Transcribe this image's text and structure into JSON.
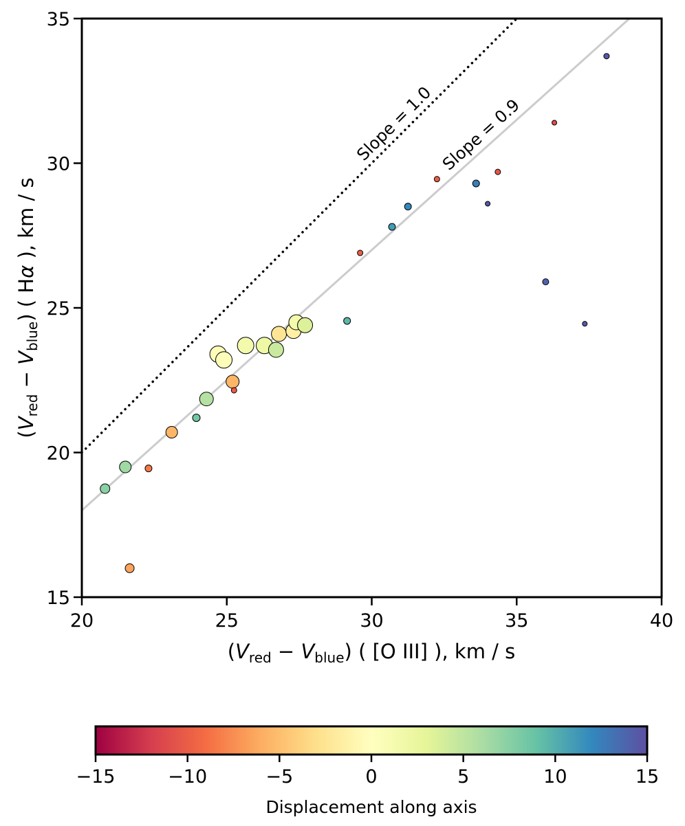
{
  "chart_data": {
    "type": "scatter",
    "x_axis": {
      "label_prefix": "(",
      "v_red_main": "V",
      "v_red_sub": "red",
      "minus": " − ",
      "v_blue_main": "V",
      "v_blue_sub": "blue",
      "label_suffix": ") ( [O III] ), km / s",
      "range": [
        20,
        40
      ],
      "ticks": [
        20,
        25,
        30,
        35,
        40
      ]
    },
    "y_axis": {
      "label_prefix": "(",
      "v_red_main": "V",
      "v_red_sub": "red",
      "minus": " − ",
      "v_blue_main": "V",
      "v_blue_sub": "blue",
      "label_suffix": ") ( H",
      "alpha": "α",
      "label_end": " ), km / s",
      "range": [
        15,
        35
      ],
      "ticks": [
        15,
        20,
        25,
        30,
        35
      ]
    },
    "reference_lines": [
      {
        "name": "slope-1.0",
        "slope": 1.0,
        "label": "Slope = 1.0",
        "style": "dotted",
        "color": "#000000"
      },
      {
        "name": "slope-0.9",
        "slope": 0.9,
        "label": "Slope = 0.9",
        "style": "solid",
        "color": "#cccccc"
      }
    ],
    "colorbar": {
      "label": "Displacement along axis",
      "range": [
        -15,
        15
      ],
      "ticks": [
        "−15",
        "−10",
        "−5",
        "0",
        "5",
        "10",
        "15"
      ],
      "tick_values": [
        -15,
        -10,
        -5,
        0,
        5,
        10,
        15
      ],
      "colormap": "Spectral",
      "stops": [
        "#9e0142",
        "#d53e4f",
        "#f46d43",
        "#fdae61",
        "#fee08b",
        "#ffffbf",
        "#e6f598",
        "#abdda4",
        "#66c2a5",
        "#3288bd",
        "#5e4fa2"
      ]
    },
    "points": [
      {
        "x": 20.8,
        "y": 18.75,
        "d": 7.5,
        "r": 7
      },
      {
        "x": 21.5,
        "y": 19.5,
        "d": 6.5,
        "r": 8.5
      },
      {
        "x": 21.65,
        "y": 16.0,
        "d": -6.5,
        "r": 6.5
      },
      {
        "x": 22.3,
        "y": 19.45,
        "d": -8.5,
        "r": 5
      },
      {
        "x": 23.1,
        "y": 20.7,
        "d": -5.5,
        "r": 8.5
      },
      {
        "x": 23.95,
        "y": 21.2,
        "d": 8.5,
        "r": 5.5
      },
      {
        "x": 24.3,
        "y": 21.85,
        "d": 5.5,
        "r": 10
      },
      {
        "x": 24.7,
        "y": 23.4,
        "d": 0.5,
        "r": 12
      },
      {
        "x": 24.9,
        "y": 23.2,
        "d": 0.5,
        "r": 12
      },
      {
        "x": 25.2,
        "y": 22.45,
        "d": -5.5,
        "r": 9.5
      },
      {
        "x": 25.25,
        "y": 22.15,
        "d": -10,
        "r": 4
      },
      {
        "x": 25.65,
        "y": 23.7,
        "d": 1.5,
        "r": 12
      },
      {
        "x": 26.3,
        "y": 23.7,
        "d": 2,
        "r": 12
      },
      {
        "x": 26.7,
        "y": 23.55,
        "d": 4.5,
        "r": 11
      },
      {
        "x": 26.8,
        "y": 24.1,
        "d": -2.5,
        "r": 11
      },
      {
        "x": 27.3,
        "y": 24.2,
        "d": -1.5,
        "r": 11
      },
      {
        "x": 27.4,
        "y": 24.5,
        "d": 1.5,
        "r": 11
      },
      {
        "x": 27.7,
        "y": 24.4,
        "d": 3.5,
        "r": 11
      },
      {
        "x": 29.15,
        "y": 24.55,
        "d": 9.5,
        "r": 5
      },
      {
        "x": 29.6,
        "y": 26.9,
        "d": -10,
        "r": 4
      },
      {
        "x": 30.7,
        "y": 27.8,
        "d": 11,
        "r": 5
      },
      {
        "x": 31.25,
        "y": 28.5,
        "d": 12,
        "r": 5
      },
      {
        "x": 32.25,
        "y": 29.45,
        "d": -10,
        "r": 4
      },
      {
        "x": 33.6,
        "y": 29.3,
        "d": 12.5,
        "r": 5
      },
      {
        "x": 34.0,
        "y": 28.6,
        "d": 14.5,
        "r": 3.5
      },
      {
        "x": 34.35,
        "y": 29.7,
        "d": -10.5,
        "r": 4
      },
      {
        "x": 36.0,
        "y": 25.9,
        "d": 14,
        "r": 4.5
      },
      {
        "x": 36.3,
        "y": 31.4,
        "d": -11,
        "r": 3.5
      },
      {
        "x": 37.35,
        "y": 24.45,
        "d": 14.5,
        "r": 3.5
      },
      {
        "x": 38.1,
        "y": 33.7,
        "d": 14.5,
        "r": 4
      }
    ]
  }
}
